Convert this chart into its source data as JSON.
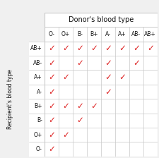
{
  "title": "Donor's blood type",
  "ylabel": "Recipient's blood type",
  "col_labels": [
    "O-",
    "O+",
    "B-",
    "B+",
    "A-",
    "A+",
    "AB-",
    "AB+"
  ],
  "row_labels": [
    "AB+",
    "AB-",
    "A+",
    "A-",
    "B+",
    "B-",
    "O+",
    "O-"
  ],
  "checks": [
    [
      1,
      1,
      1,
      1,
      1,
      1,
      1,
      1
    ],
    [
      1,
      0,
      1,
      0,
      1,
      0,
      1,
      0
    ],
    [
      1,
      1,
      0,
      0,
      1,
      1,
      0,
      0
    ],
    [
      1,
      0,
      0,
      0,
      1,
      0,
      0,
      0
    ],
    [
      1,
      1,
      1,
      1,
      0,
      0,
      0,
      0
    ],
    [
      1,
      0,
      1,
      0,
      0,
      0,
      0,
      0
    ],
    [
      1,
      1,
      0,
      0,
      0,
      0,
      0,
      0
    ],
    [
      1,
      0,
      0,
      0,
      0,
      0,
      0,
      0
    ]
  ],
  "check_color": "#dd2222",
  "grid_color": "#c8c8c8",
  "bg_color": "#f0f0f0",
  "table_bg": "#ffffff",
  "text_color": "#111111",
  "title_fontsize": 7.0,
  "label_fontsize": 5.5,
  "tick_fontsize": 5.5,
  "row_label_fontsize": 5.5,
  "check_fontsize": 8.5,
  "fig_width": 2.25,
  "fig_height": 2.24,
  "dpi": 100
}
